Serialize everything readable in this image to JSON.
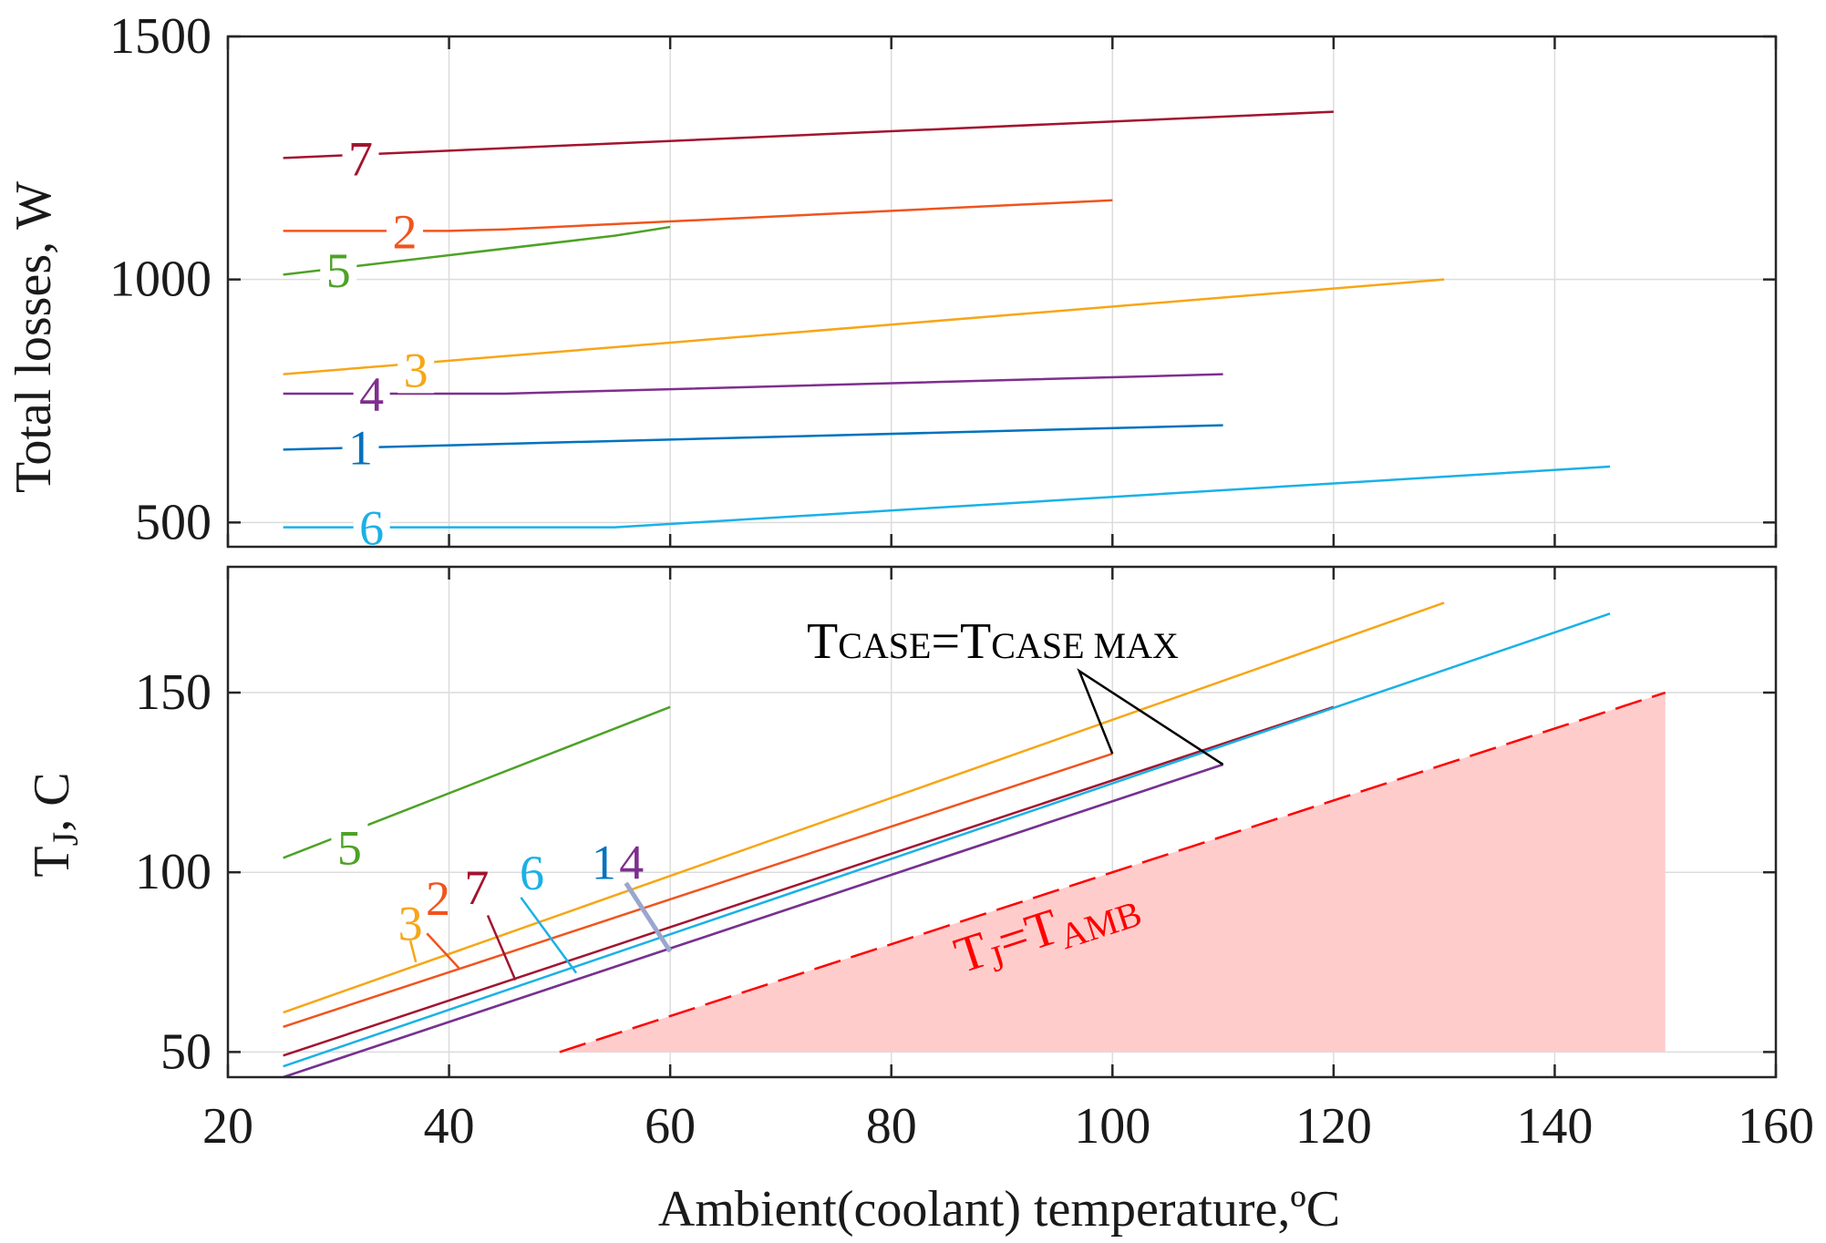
{
  "chart_data": [
    {
      "type": "line",
      "panel": "top",
      "ylabel": "Total losses, W",
      "xlim": [
        20,
        160
      ],
      "ylim": [
        450,
        1500
      ],
      "yticks": [
        "500",
        "1000",
        "1500"
      ],
      "yticks_values": [
        500,
        1000,
        1500
      ],
      "grid": true,
      "series": [
        {
          "name": "7",
          "color": "#a2142f",
          "x": [
            25,
            120
          ],
          "y": [
            1250,
            1345
          ]
        },
        {
          "name": "2",
          "color": "#f0541e",
          "x": [
            25,
            40,
            45,
            100
          ],
          "y": [
            1100,
            1100,
            1103,
            1163
          ]
        },
        {
          "name": "5",
          "color": "#4da226",
          "x": [
            25,
            55,
            60
          ],
          "y": [
            1010,
            1090,
            1108
          ]
        },
        {
          "name": "3",
          "color": "#f7a616",
          "x": [
            25,
            130
          ],
          "y": [
            805,
            1000
          ]
        },
        {
          "name": "4",
          "color": "#7e2f8e",
          "x": [
            25,
            45,
            110
          ],
          "y": [
            765,
            765,
            805
          ]
        },
        {
          "name": "1",
          "color": "#0072bd",
          "x": [
            25,
            110
          ],
          "y": [
            650,
            700
          ]
        },
        {
          "name": "6",
          "color": "#1ab1e6",
          "x": [
            25,
            55,
            145
          ],
          "y": [
            490,
            490,
            615
          ]
        }
      ],
      "curve_labels": [
        {
          "text": "7",
          "x": 32,
          "y": 1250
        },
        {
          "text": "2",
          "x": 36,
          "y": 1100
        },
        {
          "text": "5",
          "x": 30,
          "y": 1020
        },
        {
          "text": "3",
          "x": 37,
          "y": 815
        },
        {
          "text": "4",
          "x": 33,
          "y": 765
        },
        {
          "text": "1",
          "x": 32,
          "y": 655
        },
        {
          "text": "6",
          "x": 33,
          "y": 490
        }
      ]
    },
    {
      "type": "line",
      "panel": "bottom",
      "xlabel": "Ambient(coolant) temperature,ºC",
      "ylabel_main": "T",
      "ylabel_sub": "J",
      "ylabel_rest": ", C",
      "xlim": [
        20,
        160
      ],
      "ylim": [
        43,
        185
      ],
      "xticks": [
        "20",
        "40",
        "60",
        "80",
        "100",
        "120",
        "140",
        "160"
      ],
      "xticks_values": [
        20,
        40,
        60,
        80,
        100,
        120,
        140,
        160
      ],
      "yticks": [
        "50",
        "100",
        "150"
      ],
      "yticks_values": [
        50,
        100,
        150
      ],
      "grid": true,
      "series": [
        {
          "name": "5",
          "color": "#4da226",
          "x": [
            25,
            55,
            60
          ],
          "y": [
            104,
            140,
            146
          ]
        },
        {
          "name": "3",
          "color": "#f7a616",
          "x": [
            25,
            130
          ],
          "y": [
            61,
            175
          ]
        },
        {
          "name": "2",
          "color": "#f0541e",
          "x": [
            25,
            100
          ],
          "y": [
            57,
            133
          ]
        },
        {
          "name": "7",
          "color": "#a2142f",
          "x": [
            25,
            120
          ],
          "y": [
            49,
            146
          ]
        },
        {
          "name": "6",
          "color": "#1ab1e6",
          "x": [
            25,
            145
          ],
          "y": [
            46,
            172
          ]
        },
        {
          "name": "1",
          "color": "#0072bd",
          "x": [
            25,
            110
          ],
          "y": [
            43,
            130
          ]
        },
        {
          "name": "4",
          "color": "#7e2f8e",
          "x": [
            25,
            110
          ],
          "y": [
            43,
            130
          ]
        }
      ],
      "curve_labels": [
        {
          "text": "5",
          "x": 31,
          "y": 107,
          "color": "#4da226"
        },
        {
          "text": "3",
          "x": 36.5,
          "y": 86,
          "color": "#f7a616"
        },
        {
          "text": "2",
          "x": 39,
          "y": 93,
          "color": "#f0541e"
        },
        {
          "text": "7",
          "x": 42.5,
          "y": 96,
          "color": "#a2142f"
        },
        {
          "text": "6",
          "x": 47.5,
          "y": 100,
          "color": "#1ab1e6"
        },
        {
          "text": "1",
          "x": 54,
          "y": 103,
          "color": "#0072bd"
        },
        {
          "text": "4",
          "x": 56.5,
          "y": 103,
          "color": "#7e2f8e"
        }
      ],
      "label_leaders": [
        {
          "color": "#f7a616",
          "x": [
            37,
            36.5
          ],
          "y": [
            75,
            81
          ]
        },
        {
          "color": "#f0541e",
          "x": [
            41,
            38
          ],
          "y": [
            73,
            83
          ]
        },
        {
          "color": "#a2142f",
          "x": [
            46,
            43.5
          ],
          "y": [
            70,
            88
          ]
        },
        {
          "color": "#1ab1e6",
          "x": [
            51.5,
            46.5
          ],
          "y": [
            72,
            93
          ]
        },
        {
          "color": "#9aa6cf",
          "x": [
            60,
            56
          ],
          "y": [
            78,
            97
          ]
        }
      ],
      "shaded_region": {
        "label_main": "T",
        "label_sub": "J",
        "label_eq": "=T",
        "label_sub2": "AMB",
        "boundary_x": [
          50,
          150
        ],
        "boundary_y": [
          50,
          150
        ],
        "fill_color": "#ffcccc",
        "line_color": "#ff0000"
      },
      "annotation": {
        "main1": "T",
        "sub1": "CASE",
        "eq": "=T",
        "sub2": "CASE MAX",
        "arrow_x": [
          100,
          97,
          110
        ],
        "arrow_y": [
          133,
          156,
          130
        ]
      }
    }
  ]
}
